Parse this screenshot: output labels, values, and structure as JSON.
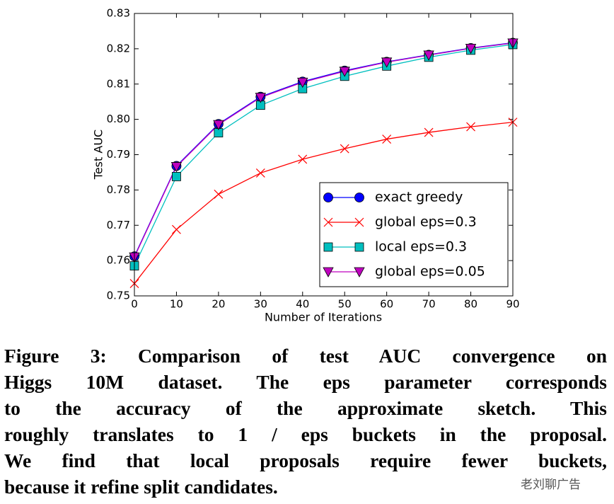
{
  "chart_data": {
    "type": "line",
    "xlabel": "Number of Iterations",
    "ylabel": "Test AUC",
    "x": [
      0,
      10,
      20,
      30,
      40,
      50,
      60,
      70,
      80,
      90
    ],
    "series": [
      {
        "name": "exact greedy",
        "color": "#0000ff",
        "marker": "o",
        "values": [
          0.7612,
          0.7868,
          0.7987,
          0.8064,
          0.8107,
          0.8138,
          0.8163,
          0.8183,
          0.8202,
          0.8217
        ]
      },
      {
        "name": "global eps=0.3",
        "color": "#ff0000",
        "marker": "x",
        "values": [
          0.7535,
          0.7688,
          0.7788,
          0.7848,
          0.7887,
          0.7917,
          0.7944,
          0.7963,
          0.7979,
          0.7992
        ]
      },
      {
        "name": "local eps=0.3",
        "color": "#00bfbf",
        "marker": "s",
        "values": [
          0.7585,
          0.7838,
          0.7962,
          0.804,
          0.8087,
          0.8122,
          0.8151,
          0.8176,
          0.8196,
          0.8212
        ]
      },
      {
        "name": "global eps=0.05",
        "color": "#bf00bf",
        "marker": "v",
        "values": [
          0.761,
          0.7866,
          0.7985,
          0.8062,
          0.8105,
          0.8136,
          0.8162,
          0.8182,
          0.8201,
          0.8216
        ]
      }
    ],
    "xlim": [
      0,
      90
    ],
    "xticks": [
      0,
      10,
      20,
      30,
      40,
      50,
      60,
      70,
      80,
      90
    ],
    "ylim": [
      0.75,
      0.83
    ],
    "yticks": [
      0.75,
      0.76,
      0.77,
      0.78,
      0.79,
      {
        "value": 0.8,
        "label": "0.80"
      },
      0.81,
      0.82,
      0.83
    ],
    "legend": "lower right",
    "grid": false
  },
  "caption": [
    "Figure 3: Comparison of test AUC convergence on",
    "Higgs 10M dataset. The eps parameter corresponds",
    "to the accuracy of the approximate sketch. This",
    "roughly translates to 1 / eps buckets in the proposal.",
    "We find that local proposals require fewer buckets,",
    "because it refine split candidates."
  ],
  "watermark": "老刘聊广告"
}
